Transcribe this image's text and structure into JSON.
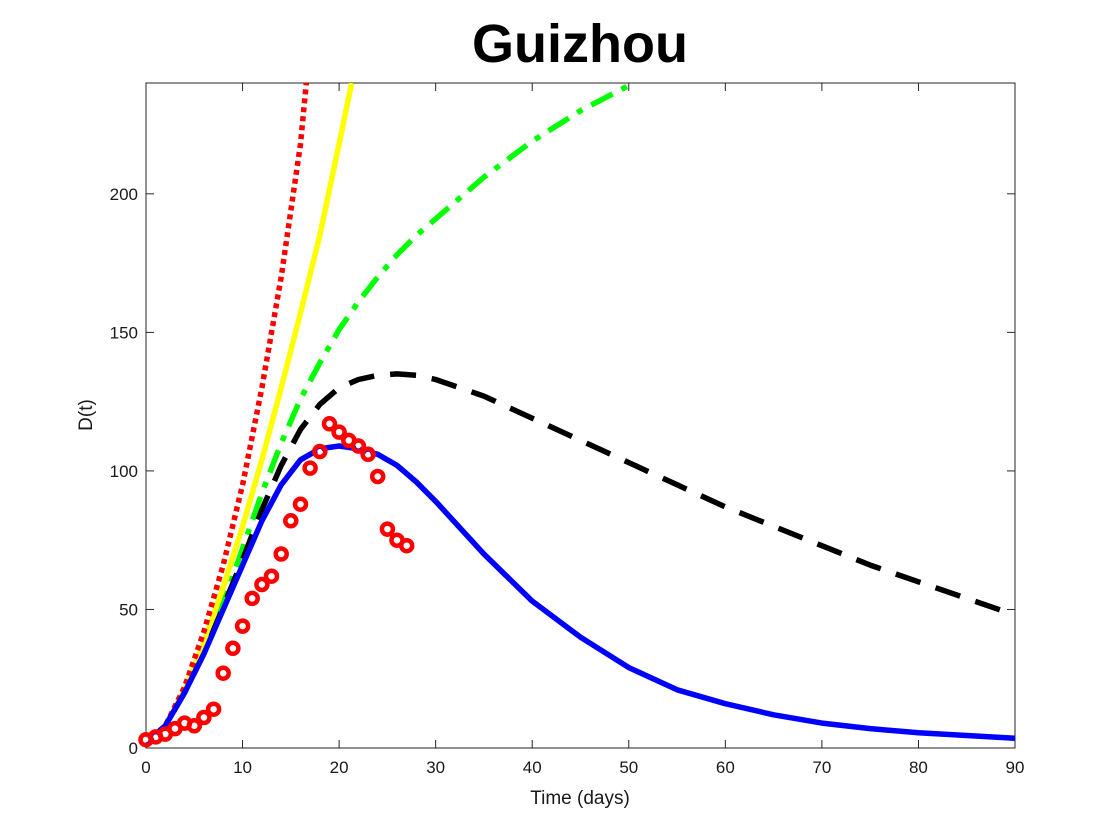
{
  "chart_data": {
    "type": "line",
    "title": "Guizhou",
    "xlabel": "Time (days)",
    "ylabel": "D(t)",
    "xlim": [
      0,
      90
    ],
    "ylim": [
      0,
      240
    ],
    "xticks": [
      0,
      10,
      20,
      30,
      40,
      50,
      60,
      70,
      80,
      90
    ],
    "yticks": [
      0,
      50,
      100,
      150,
      200
    ],
    "grid": false,
    "legend": false,
    "series": [
      {
        "style": "solid",
        "color": "#0000ff",
        "x": [
          0,
          2,
          4,
          6,
          8,
          10,
          12,
          14,
          16,
          18,
          20,
          22,
          24,
          26,
          28,
          30,
          35,
          40,
          45,
          50,
          55,
          60,
          65,
          70,
          75,
          80,
          85,
          90
        ],
        "y": [
          2,
          8,
          20,
          34,
          50,
          66,
          82,
          95,
          104,
          108,
          109,
          108,
          106,
          102,
          96,
          89,
          70,
          53,
          40,
          29,
          21,
          16,
          12,
          9,
          7,
          5.5,
          4.5,
          3.5
        ]
      },
      {
        "style": "dashed",
        "color": "#000000",
        "x": [
          0,
          2,
          4,
          6,
          8,
          10,
          12,
          14,
          16,
          18,
          20,
          22,
          24,
          26,
          28,
          30,
          35,
          40,
          45,
          50,
          55,
          60,
          65,
          70,
          75,
          80,
          85,
          90
        ],
        "y": [
          2,
          8,
          20,
          34,
          51,
          68,
          86,
          102,
          115,
          124,
          130,
          133,
          134.5,
          135,
          134.5,
          133,
          127,
          119,
          111,
          103,
          95,
          87,
          80,
          73,
          66,
          60,
          54,
          48
        ]
      },
      {
        "style": "dashdot",
        "color": "#00ff00",
        "x": [
          0,
          2,
          4,
          6,
          8,
          10,
          12,
          14,
          16,
          18,
          20,
          22,
          24,
          26,
          28,
          30,
          35,
          40,
          45,
          50.5
        ],
        "y": [
          2,
          8,
          20,
          35,
          52,
          72,
          92,
          110,
          126,
          139,
          151,
          161,
          170,
          178,
          185,
          191,
          206,
          219,
          230,
          240
        ]
      },
      {
        "style": "solid",
        "color": "#ffff00",
        "x": [
          0,
          2,
          4,
          6,
          8,
          10,
          12,
          14,
          16,
          18,
          20,
          21.3
        ],
        "y": [
          2,
          8,
          21,
          38,
          58,
          80,
          104,
          130,
          157,
          185,
          218,
          240
        ]
      },
      {
        "style": "dotted",
        "color": "#ff0000",
        "x": [
          0,
          2,
          4,
          6,
          8,
          10,
          12,
          14,
          16,
          16.6
        ],
        "y": [
          2,
          8,
          22,
          42,
          66,
          95,
          130,
          170,
          218,
          240
        ]
      },
      {
        "style": "markers",
        "color": "#ff0000",
        "x": [
          0,
          1,
          2,
          3,
          4,
          5,
          6,
          7,
          8,
          9,
          10,
          11,
          12,
          13,
          14,
          15,
          16,
          17,
          18,
          19,
          20,
          21,
          22,
          23,
          24,
          25,
          26,
          27
        ],
        "y": [
          3,
          4,
          5,
          7,
          9,
          8,
          11,
          14,
          27,
          36,
          44,
          54,
          59,
          62,
          70,
          82,
          88,
          101,
          107,
          117,
          114,
          111,
          109,
          106,
          98,
          79,
          75,
          73
        ]
      }
    ]
  }
}
